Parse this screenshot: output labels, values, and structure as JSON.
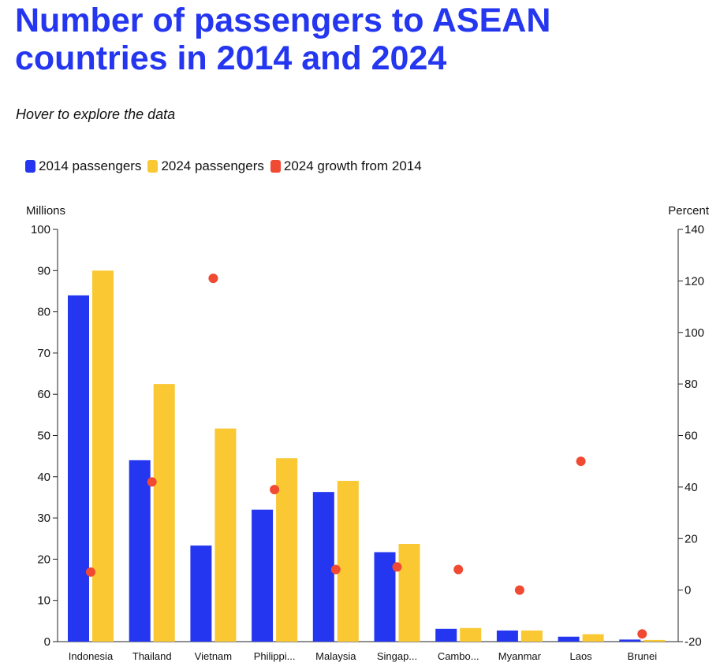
{
  "header": {
    "title": "Number of passengers to ASEAN countries in 2014 and 2024",
    "subtitle": "Hover to explore the data"
  },
  "legend": [
    {
      "label": "2014 passengers",
      "color": "#2436ef"
    },
    {
      "label": "2024 passengers",
      "color": "#f9c833"
    },
    {
      "label": "2024 growth from 2014",
      "color": "#f04a32"
    }
  ],
  "chart_data": {
    "type": "bar",
    "categories": [
      "Indonesia",
      "Thailand",
      "Vietnam",
      "Philippi...",
      "Malaysia",
      "Singap...",
      "Cambo...",
      "Myanmar",
      "Laos",
      "Brunei"
    ],
    "series": [
      {
        "name": "2014 passengers",
        "axis": "left",
        "kind": "bar",
        "color": "#2436ef",
        "values": [
          84,
          44,
          23.3,
          32,
          36.3,
          21.7,
          3.1,
          2.7,
          1.2,
          0.5
        ]
      },
      {
        "name": "2024 passengers",
        "axis": "left",
        "kind": "bar",
        "color": "#f9c833",
        "values": [
          90,
          62.5,
          51.7,
          44.5,
          39,
          23.7,
          3.3,
          2.7,
          1.8,
          0.4
        ]
      },
      {
        "name": "2024 growth from 2014",
        "axis": "right",
        "kind": "dot",
        "color": "#f04a32",
        "values": [
          7,
          42,
          121,
          39,
          8,
          9,
          8,
          0,
          50,
          -17
        ]
      }
    ],
    "left_axis": {
      "label": "Millions",
      "min": 0,
      "max": 100,
      "ticks": [
        0,
        10,
        20,
        30,
        40,
        50,
        60,
        70,
        80,
        90,
        100
      ]
    },
    "right_axis": {
      "label": "Percent",
      "min": -20,
      "max": 140,
      "ticks": [
        -20,
        0,
        20,
        40,
        60,
        80,
        100,
        120,
        140
      ]
    },
    "grid": false
  }
}
